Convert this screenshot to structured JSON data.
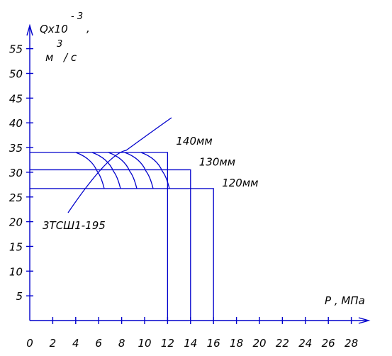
{
  "chart_data": {
    "type": "line",
    "ylabel": "Qx10",
    "ylabel_exp": "- 3",
    "ylabel_sep": ",",
    "ylabel_unit_m": "м",
    "ylabel_unit_exp": "3",
    "ylabel_unit_rest": "/ с",
    "xlabel": "P , МПа",
    "x_ticks": [
      0,
      2,
      4,
      6,
      8,
      10,
      12,
      14,
      16,
      18,
      20,
      22,
      24,
      26,
      28
    ],
    "y_ticks": [
      5,
      10,
      15,
      20,
      25,
      30,
      35,
      40,
      45,
      50,
      55
    ],
    "xlim": [
      0,
      29
    ],
    "ylim": [
      0,
      59
    ],
    "series": [
      {
        "name": "140мм",
        "q": 34.0,
        "p": 12.0
      },
      {
        "name": "130мм",
        "q": 30.5,
        "p": 14.0
      },
      {
        "name": "120мм",
        "q": 26.7,
        "p": 16.0
      }
    ],
    "annotation": "3ТСШ1-195",
    "colors": {
      "lines": "#0000cc",
      "text": "#000000"
    }
  }
}
